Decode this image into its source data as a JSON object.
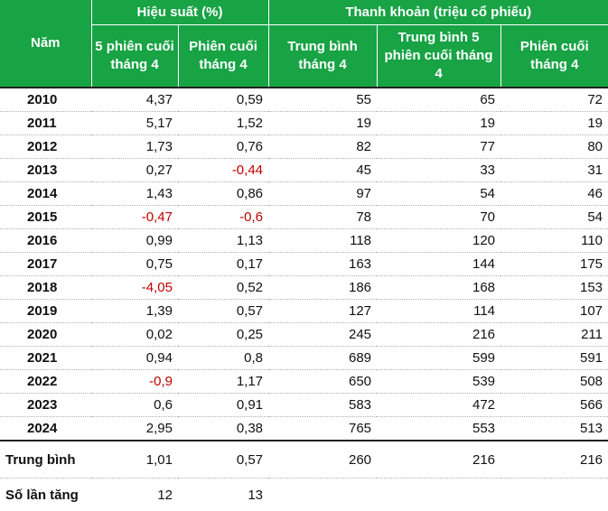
{
  "header": {
    "col_year": "Năm",
    "group_perf": "Hiệu suất (%)",
    "group_liq": "Thanh khoản (triệu cổ phiếu)",
    "perf_5d": "5 phiên cuối tháng 4",
    "perf_last": "Phiên cuối tháng 4",
    "liq_avg": "Trung bình tháng 4",
    "liq_avg5": "Trung bình 5 phiên cuối tháng 4",
    "liq_last": "Phiên cuối tháng 4"
  },
  "rows": [
    {
      "year": "2010",
      "perf5": "4,37",
      "perfLast": "0,59",
      "liqAvg": "55",
      "liqAvg5": "65",
      "liqLast": "72"
    },
    {
      "year": "2011",
      "perf5": "5,17",
      "perfLast": "1,52",
      "liqAvg": "19",
      "liqAvg5": "19",
      "liqLast": "19"
    },
    {
      "year": "2012",
      "perf5": "1,73",
      "perfLast": "0,76",
      "liqAvg": "82",
      "liqAvg5": "77",
      "liqLast": "80"
    },
    {
      "year": "2013",
      "perf5": "0,27",
      "perfLast": "-0,44",
      "liqAvg": "45",
      "liqAvg5": "33",
      "liqLast": "31"
    },
    {
      "year": "2014",
      "perf5": "1,43",
      "perfLast": "0,86",
      "liqAvg": "97",
      "liqAvg5": "54",
      "liqLast": "46"
    },
    {
      "year": "2015",
      "perf5": "-0,47",
      "perfLast": "-0,6",
      "liqAvg": "78",
      "liqAvg5": "70",
      "liqLast": "54"
    },
    {
      "year": "2016",
      "perf5": "0,99",
      "perfLast": "1,13",
      "liqAvg": "118",
      "liqAvg5": "120",
      "liqLast": "110"
    },
    {
      "year": "2017",
      "perf5": "0,75",
      "perfLast": "0,17",
      "liqAvg": "163",
      "liqAvg5": "144",
      "liqLast": "175"
    },
    {
      "year": "2018",
      "perf5": "-4,05",
      "perfLast": "0,52",
      "liqAvg": "186",
      "liqAvg5": "168",
      "liqLast": "153"
    },
    {
      "year": "2019",
      "perf5": "1,39",
      "perfLast": "0,57",
      "liqAvg": "127",
      "liqAvg5": "114",
      "liqLast": "107"
    },
    {
      "year": "2020",
      "perf5": "0,02",
      "perfLast": "0,25",
      "liqAvg": "245",
      "liqAvg5": "216",
      "liqLast": "211"
    },
    {
      "year": "2021",
      "perf5": "0,94",
      "perfLast": "0,8",
      "liqAvg": "689",
      "liqAvg5": "599",
      "liqLast": "591"
    },
    {
      "year": "2022",
      "perf5": "-0,9",
      "perfLast": "1,17",
      "liqAvg": "650",
      "liqAvg5": "539",
      "liqLast": "508"
    },
    {
      "year": "2023",
      "perf5": "0,6",
      "perfLast": "0,91",
      "liqAvg": "583",
      "liqAvg5": "472",
      "liqLast": "566"
    },
    {
      "year": "2024",
      "perf5": "2,95",
      "perfLast": "0,38",
      "liqAvg": "765",
      "liqAvg5": "553",
      "liqLast": "513"
    }
  ],
  "average": {
    "label": "Trung bình",
    "perf5": "1,01",
    "perfLast": "0,57",
    "liqAvg": "260",
    "liqAvg5": "216",
    "liqLast": "216"
  },
  "increase_count": {
    "label": "Số lần tăng",
    "perf5": "12",
    "perfLast": "13"
  },
  "colors": {
    "header_bg": "#18a345",
    "negative": "#c00000"
  }
}
